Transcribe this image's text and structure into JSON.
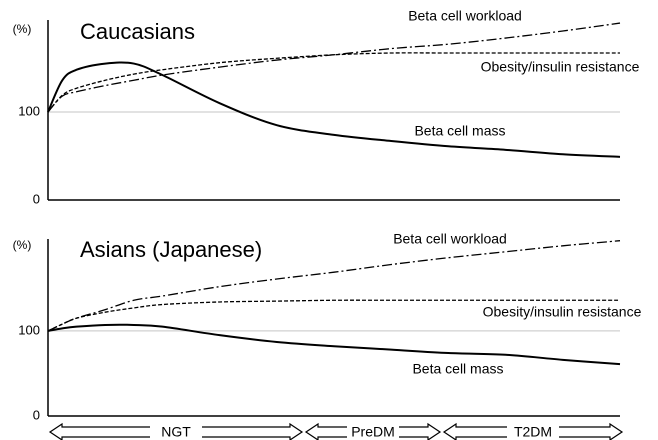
{
  "chart_data": [
    {
      "type": "line",
      "title": "Caucasians",
      "y_label": "(%)",
      "x": [
        0,
        0.25,
        0.5,
        1,
        1.5,
        2,
        3,
        4,
        5,
        6,
        7,
        8,
        9,
        10
      ],
      "xlim": [
        0,
        10
      ],
      "ylim": [
        0,
        204.5
      ],
      "yticks": [
        0,
        100
      ],
      "grid": true,
      "series": [
        {
          "name": "Beta cell workload",
          "color": "#000000",
          "style": "dashdot",
          "values": [
            100,
            118,
            123,
            130,
            136,
            142,
            151,
            159,
            165,
            172,
            177,
            184,
            192,
            201
          ]
        },
        {
          "name": "Obesity/insulin resistance",
          "color": "#000000",
          "style": "dashed",
          "values": [
            100,
            119,
            127,
            136,
            143,
            148,
            156,
            161,
            165,
            167,
            167,
            167,
            167,
            167
          ]
        },
        {
          "name": "Beta cell mass",
          "color": "#000000",
          "style": "solid",
          "values": [
            100,
            136,
            148,
            155,
            155,
            142,
            110,
            85,
            74,
            67,
            61,
            57,
            52,
            49
          ]
        }
      ]
    },
    {
      "type": "line",
      "title": "Asians (Japanese)",
      "y_label": "(%)",
      "x": [
        0,
        0.25,
        0.5,
        1,
        1.5,
        2,
        3,
        4,
        5,
        6,
        7,
        8,
        9,
        10
      ],
      "xlim": [
        0,
        10
      ],
      "ylim": [
        0,
        208
      ],
      "yticks": [
        0,
        100
      ],
      "grid": true,
      "series": [
        {
          "name": "Beta cell workload",
          "color": "#000000",
          "style": "dashdot",
          "values": [
            100,
            108,
            115,
            125,
            136,
            141,
            152,
            161,
            169,
            178,
            186,
            193,
            200,
            206
          ]
        },
        {
          "name": "Obesity/insulin resistance",
          "color": "#000000",
          "style": "dashed",
          "values": [
            100,
            108,
            115,
            122,
            127,
            131,
            134,
            135,
            136,
            136,
            136,
            136,
            136,
            136
          ]
        },
        {
          "name": "Beta cell mass",
          "color": "#000000",
          "style": "solid",
          "values": [
            100,
            103,
            105,
            107,
            107,
            105,
            95,
            87,
            82,
            78,
            74,
            72,
            66,
            61
          ]
        }
      ]
    }
  ],
  "stages": [
    "NGT",
    "PreDM",
    "T2DM"
  ]
}
